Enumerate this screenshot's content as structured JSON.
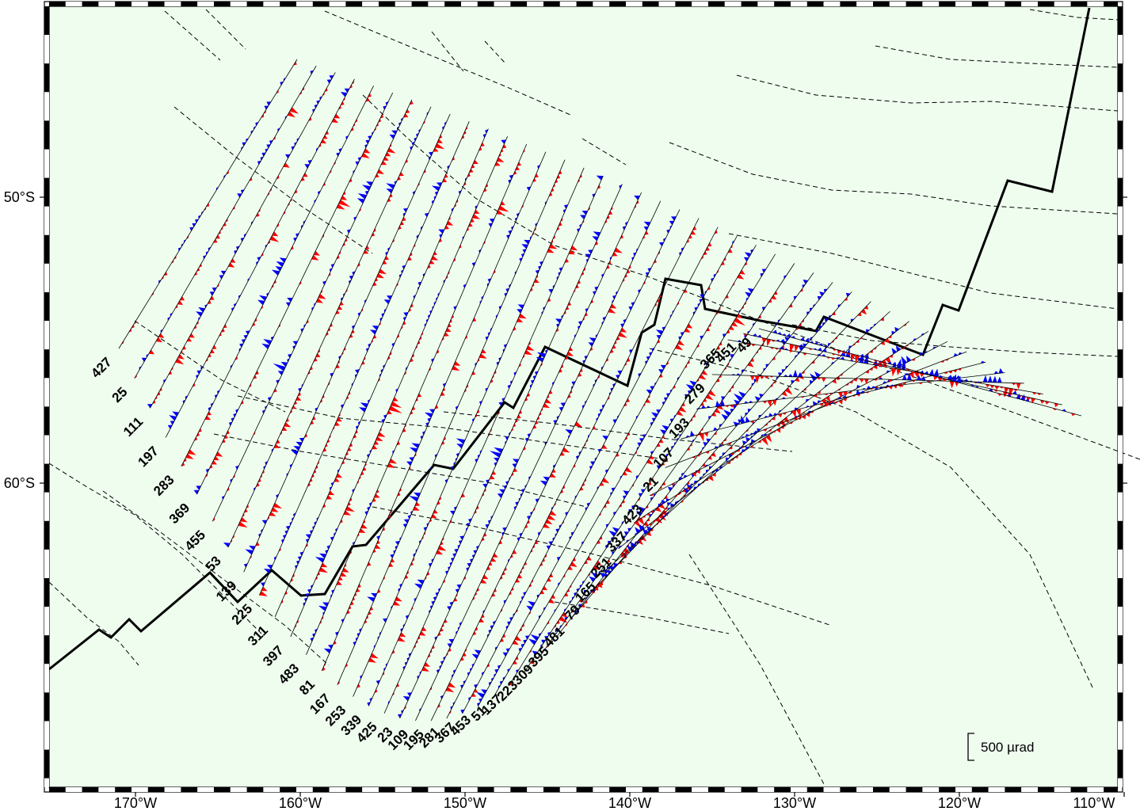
{
  "map": {
    "frame_colors": {
      "fill": "#effdef",
      "frame_dark": "#000000",
      "frame_light": "#ffffff"
    },
    "lon_ticks": [
      {
        "value": -170,
        "label": "170°W"
      },
      {
        "value": -160,
        "label": "160°W"
      },
      {
        "value": -150,
        "label": "150°W"
      },
      {
        "value": -140,
        "label": "140°W"
      },
      {
        "value": -130,
        "label": "130°W"
      },
      {
        "value": -120,
        "label": "120°W"
      },
      {
        "value": -110,
        "label": "110°W"
      }
    ],
    "lat_ticks": [
      {
        "value": -50,
        "label": "50°S"
      },
      {
        "value": -60,
        "label": "60°S"
      }
    ],
    "scale_bar": {
      "label": "500 µrad"
    },
    "wiggle_colors": {
      "positive": "#ff0000",
      "negative": "#0000ff"
    },
    "track_labels": [
      "427",
      "25",
      "111",
      "197",
      "283",
      "369",
      "455",
      "53",
      "139",
      "225",
      "311",
      "397",
      "483",
      "81",
      "167",
      "253",
      "339",
      "425",
      "23",
      "109",
      "195",
      "281",
      "367",
      "453",
      "51",
      "137",
      "223",
      "309",
      "395",
      "481",
      "79",
      "165",
      "251",
      "337",
      "423",
      "21",
      "107",
      "193",
      "279",
      "365",
      "451",
      "49"
    ]
  }
}
